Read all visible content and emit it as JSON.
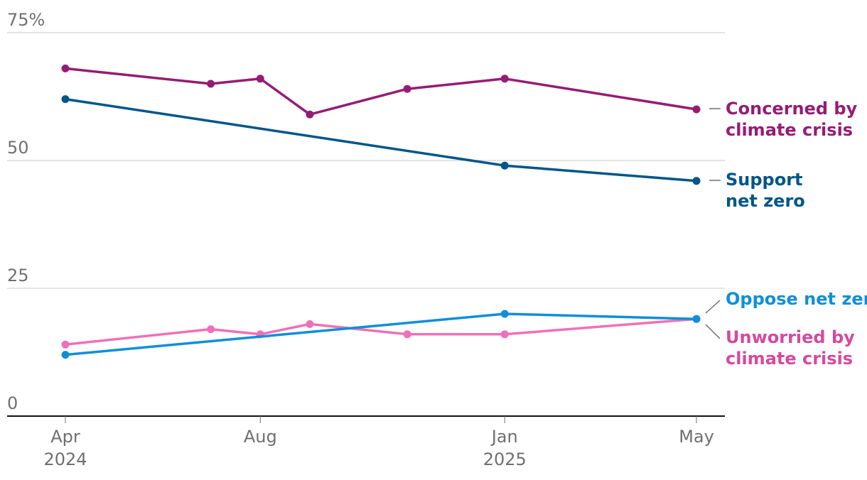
{
  "chart_data": {
    "type": "line",
    "title": "",
    "xlabel": "",
    "ylabel": "",
    "ylim": [
      0,
      75
    ],
    "y_ticks": [
      {
        "value": 0,
        "label": "0"
      },
      {
        "value": 25,
        "label": "25"
      },
      {
        "value": 50,
        "label": "50"
      },
      {
        "value": 75,
        "label": "75%"
      }
    ],
    "x_ticks": [
      {
        "date": "2024-04",
        "label": "Apr",
        "year": "2024"
      },
      {
        "date": "2024-08",
        "label": "Aug",
        "year": ""
      },
      {
        "date": "2025-01",
        "label": "Jan",
        "year": "2025"
      },
      {
        "date": "2025-05",
        "label": "May",
        "year": ""
      }
    ],
    "grid": true,
    "legend": "direct labels at right end of each series",
    "series": [
      {
        "name": "Concerned by climate crisis",
        "label_lines": [
          "Concerned by",
          "climate crisis"
        ],
        "color": "#951c75",
        "label_color": "#951c75",
        "points": [
          {
            "x": "2024-04",
            "y": 68
          },
          {
            "x": "2024-07",
            "y": 65
          },
          {
            "x": "2024-08",
            "y": 66
          },
          {
            "x": "2024-09",
            "y": 59
          },
          {
            "x": "2024-11",
            "y": 64
          },
          {
            "x": "2025-01",
            "y": 66
          },
          {
            "x": "2025-05",
            "y": 60
          }
        ]
      },
      {
        "name": "Support net zero",
        "label_lines": [
          "Support",
          "net zero"
        ],
        "color": "#005689",
        "label_color": "#005689",
        "points": [
          {
            "x": "2024-04",
            "y": 62
          },
          {
            "x": "2025-01",
            "y": 49
          },
          {
            "x": "2025-05",
            "y": 46
          }
        ]
      },
      {
        "name": "Oppose net zero",
        "label_lines": [
          "Oppose net zero"
        ],
        "color": "#0f8fd8",
        "label_color": "#0f8fd8",
        "points": [
          {
            "x": "2024-04",
            "y": 12
          },
          {
            "x": "2025-01",
            "y": 20
          },
          {
            "x": "2025-05",
            "y": 19
          }
        ]
      },
      {
        "name": "Unworried by climate crisis",
        "label_lines": [
          "Unworried by",
          "climate crisis"
        ],
        "color": "#f070b8",
        "label_color": "#d44a9e",
        "points": [
          {
            "x": "2024-04",
            "y": 14
          },
          {
            "x": "2024-07",
            "y": 17
          },
          {
            "x": "2024-08",
            "y": 16
          },
          {
            "x": "2024-09",
            "y": 18
          },
          {
            "x": "2024-11",
            "y": 16
          },
          {
            "x": "2025-01",
            "y": 16
          },
          {
            "x": "2025-05",
            "y": 19
          }
        ]
      }
    ]
  }
}
